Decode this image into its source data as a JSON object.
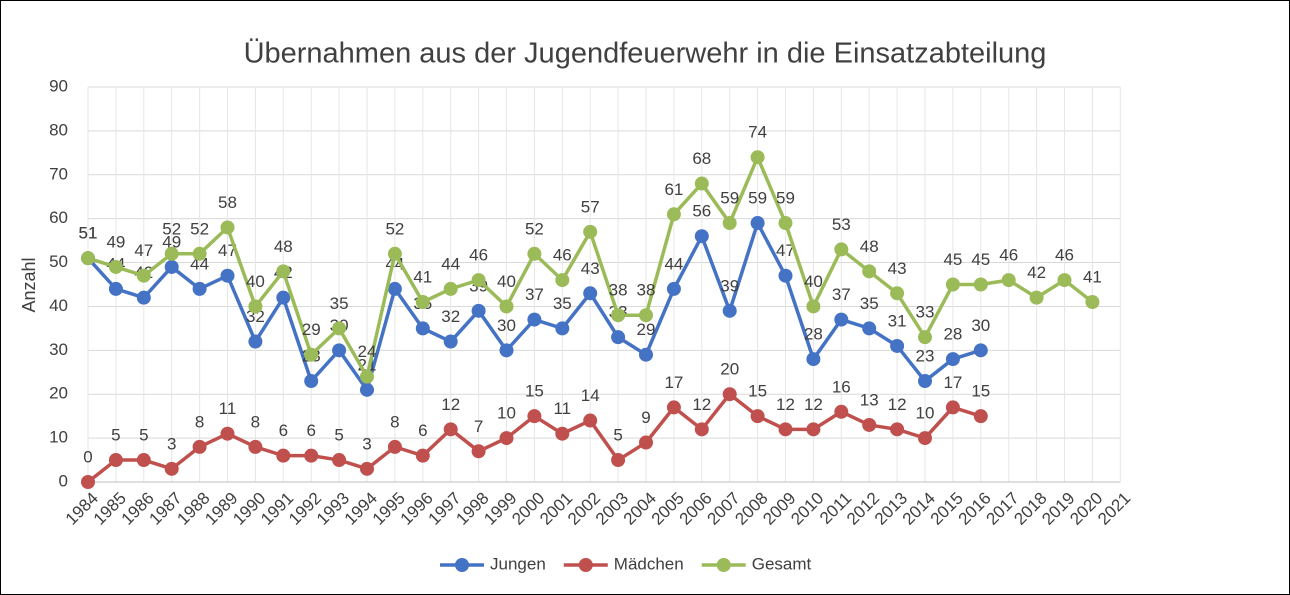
{
  "chart_data": {
    "type": "line",
    "title": "Übernahmen aus der Jugendfeuerwehr in die Einsatzabteilung",
    "y_label": "Anzahl",
    "categories": [
      "1984",
      "1985",
      "1986",
      "1987",
      "1988",
      "1989",
      "1990",
      "1991",
      "1992",
      "1993",
      "1994",
      "1995",
      "1996",
      "1997",
      "1998",
      "1999",
      "2000",
      "2001",
      "2002",
      "2003",
      "2004",
      "2005",
      "2006",
      "2007",
      "2008",
      "2009",
      "2010",
      "2011",
      "2012",
      "2013",
      "2014",
      "2015",
      "2016",
      "2017",
      "2018",
      "2019",
      "2020",
      "2021"
    ],
    "series": [
      {
        "name": "Jungen",
        "color": "#4472c4",
        "values": [
          51,
          44,
          42,
          49,
          44,
          47,
          32,
          42,
          23,
          30,
          21,
          44,
          35,
          32,
          39,
          30,
          37,
          35,
          43,
          33,
          29,
          44,
          56,
          39,
          59,
          47,
          28,
          37,
          35,
          31,
          23,
          28,
          30,
          null,
          null,
          null,
          null,
          null
        ]
      },
      {
        "name": "Mädchen",
        "color": "#c0504d",
        "values": [
          0,
          5,
          5,
          3,
          8,
          11,
          8,
          6,
          6,
          5,
          3,
          8,
          6,
          12,
          7,
          10,
          15,
          11,
          14,
          5,
          9,
          17,
          12,
          20,
          15,
          12,
          12,
          16,
          13,
          12,
          10,
          17,
          15,
          null,
          null,
          null,
          null,
          null
        ]
      },
      {
        "name": "Gesamt",
        "color": "#9bbb59",
        "values": [
          51,
          49,
          47,
          52,
          52,
          58,
          40,
          48,
          29,
          35,
          24,
          52,
          41,
          44,
          46,
          40,
          52,
          46,
          57,
          38,
          38,
          61,
          68,
          59,
          74,
          59,
          40,
          53,
          48,
          43,
          33,
          45,
          45,
          46,
          42,
          46,
          41,
          null
        ]
      }
    ],
    "ylim": [
      0,
      90
    ],
    "yticks": [
      0,
      10,
      20,
      30,
      40,
      50,
      60,
      70,
      80,
      90
    ],
    "grid": true,
    "legend": "bottom"
  }
}
